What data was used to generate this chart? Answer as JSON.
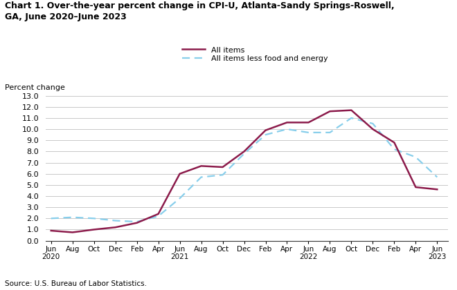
{
  "title": "Chart 1. Over-the-year percent change in CPI-U, Atlanta-Sandy Springs-Roswell,\nGA, June 2020–June 2023",
  "ylabel": "Percent change",
  "source": "Source: U.S. Bureau of Labor Statistics.",
  "legend_all_items": "All items",
  "legend_core": "All items less food and energy",
  "all_items_color": "#8B1A4A",
  "core_color": "#87CEEB",
  "ylim": [
    0.0,
    13.0
  ],
  "yticks": [
    0.0,
    1.0,
    2.0,
    3.0,
    4.0,
    5.0,
    6.0,
    7.0,
    8.0,
    9.0,
    10.0,
    11.0,
    12.0,
    13.0
  ],
  "x_labels": [
    "Jun\n2020",
    "Aug",
    "Oct",
    "Dec",
    "Feb",
    "Apr",
    "Jun\n2021",
    "Aug",
    "Oct",
    "Dec",
    "Feb",
    "Apr",
    "Jun\n2022",
    "Aug",
    "Oct",
    "Dec",
    "Feb",
    "Apr",
    "Jun\n2023"
  ],
  "x_positions": [
    0,
    2,
    4,
    6,
    8,
    10,
    12,
    14,
    16,
    18,
    20,
    22,
    24,
    26,
    28,
    30,
    32,
    34,
    36
  ],
  "all_items": [
    0.9,
    0.75,
    1.0,
    1.2,
    1.6,
    2.4,
    6.0,
    6.7,
    6.6,
    8.0,
    9.9,
    10.6,
    10.6,
    11.6,
    11.7,
    10.0,
    8.8,
    4.8,
    4.6
  ],
  "core_items": [
    2.0,
    2.1,
    2.0,
    1.8,
    1.7,
    2.2,
    3.8,
    5.7,
    5.9,
    7.8,
    9.5,
    10.0,
    9.7,
    9.7,
    11.0,
    10.5,
    8.2,
    7.5,
    5.7
  ]
}
